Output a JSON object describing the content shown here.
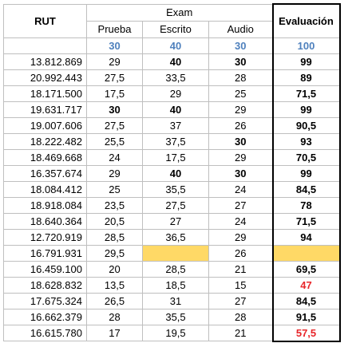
{
  "header": {
    "rut": "RUT",
    "exam": "Exam",
    "evaluacion": "Evaluación",
    "prueba": "Prueba",
    "escrito": "Escrito",
    "audio": "Audio"
  },
  "max_scores": {
    "prueba": "30",
    "escrito": "40",
    "audio": "30",
    "evaluacion": "100"
  },
  "rows": [
    {
      "rut": "13.812.869",
      "prueba": "29",
      "escrito": "40",
      "audio": "30",
      "eval": "99",
      "bold_p": false,
      "bold_e": true,
      "bold_a": true,
      "eval_red": false,
      "hl_e": false,
      "hl_eval": false
    },
    {
      "rut": "20.992.443",
      "prueba": "27,5",
      "escrito": "33,5",
      "audio": "28",
      "eval": "89",
      "bold_p": false,
      "bold_e": false,
      "bold_a": false,
      "eval_red": false,
      "hl_e": false,
      "hl_eval": false
    },
    {
      "rut": "18.171.500",
      "prueba": "17,5",
      "escrito": "29",
      "audio": "25",
      "eval": "71,5",
      "bold_p": false,
      "bold_e": false,
      "bold_a": false,
      "eval_red": false,
      "hl_e": false,
      "hl_eval": false
    },
    {
      "rut": "19.631.717",
      "prueba": "30",
      "escrito": "40",
      "audio": "29",
      "eval": "99",
      "bold_p": true,
      "bold_e": true,
      "bold_a": false,
      "eval_red": false,
      "hl_e": false,
      "hl_eval": false
    },
    {
      "rut": "19.007.606",
      "prueba": "27,5",
      "escrito": "37",
      "audio": "26",
      "eval": "90,5",
      "bold_p": false,
      "bold_e": false,
      "bold_a": false,
      "eval_red": false,
      "hl_e": false,
      "hl_eval": false
    },
    {
      "rut": "18.222.482",
      "prueba": "25,5",
      "escrito": "37,5",
      "audio": "30",
      "eval": "93",
      "bold_p": false,
      "bold_e": false,
      "bold_a": true,
      "eval_red": false,
      "hl_e": false,
      "hl_eval": false
    },
    {
      "rut": "18.469.668",
      "prueba": "24",
      "escrito": "17,5",
      "audio": "29",
      "eval": "70,5",
      "bold_p": false,
      "bold_e": false,
      "bold_a": false,
      "eval_red": false,
      "hl_e": false,
      "hl_eval": false
    },
    {
      "rut": "16.357.674",
      "prueba": "29",
      "escrito": "40",
      "audio": "30",
      "eval": "99",
      "bold_p": false,
      "bold_e": true,
      "bold_a": true,
      "eval_red": false,
      "hl_e": false,
      "hl_eval": false
    },
    {
      "rut": "18.084.412",
      "prueba": "25",
      "escrito": "35,5",
      "audio": "24",
      "eval": "84,5",
      "bold_p": false,
      "bold_e": false,
      "bold_a": false,
      "eval_red": false,
      "hl_e": false,
      "hl_eval": false
    },
    {
      "rut": "18.918.084",
      "prueba": "23,5",
      "escrito": "27,5",
      "audio": "27",
      "eval": "78",
      "bold_p": false,
      "bold_e": false,
      "bold_a": false,
      "eval_red": false,
      "hl_e": false,
      "hl_eval": false
    },
    {
      "rut": "18.640.364",
      "prueba": "20,5",
      "escrito": "27",
      "audio": "24",
      "eval": "71,5",
      "bold_p": false,
      "bold_e": false,
      "bold_a": false,
      "eval_red": false,
      "hl_e": false,
      "hl_eval": false
    },
    {
      "rut": "12.720.919",
      "prueba": "28,5",
      "escrito": "36,5",
      "audio": "29",
      "eval": "94",
      "bold_p": false,
      "bold_e": false,
      "bold_a": false,
      "eval_red": false,
      "hl_e": false,
      "hl_eval": false
    },
    {
      "rut": "16.791.931",
      "prueba": "29,5",
      "escrito": "",
      "audio": "26",
      "eval": "",
      "bold_p": false,
      "bold_e": false,
      "bold_a": false,
      "eval_red": false,
      "hl_e": true,
      "hl_eval": true
    },
    {
      "rut": "16.459.100",
      "prueba": "20",
      "escrito": "28,5",
      "audio": "21",
      "eval": "69,5",
      "bold_p": false,
      "bold_e": false,
      "bold_a": false,
      "eval_red": false,
      "hl_e": false,
      "hl_eval": false
    },
    {
      "rut": "18.628.832",
      "prueba": "13,5",
      "escrito": "18,5",
      "audio": "15",
      "eval": "47",
      "bold_p": false,
      "bold_e": false,
      "bold_a": false,
      "eval_red": true,
      "hl_e": false,
      "hl_eval": false
    },
    {
      "rut": "17.675.324",
      "prueba": "26,5",
      "escrito": "31",
      "audio": "27",
      "eval": "84,5",
      "bold_p": false,
      "bold_e": false,
      "bold_a": false,
      "eval_red": false,
      "hl_e": false,
      "hl_eval": false
    },
    {
      "rut": "16.662.379",
      "prueba": "28",
      "escrito": "35,5",
      "audio": "28",
      "eval": "91,5",
      "bold_p": false,
      "bold_e": false,
      "bold_a": false,
      "eval_red": false,
      "hl_e": false,
      "hl_eval": false
    },
    {
      "rut": "16.615.780",
      "prueba": "17",
      "escrito": "19,5",
      "audio": "21",
      "eval": "57,5",
      "bold_p": false,
      "bold_e": false,
      "bold_a": false,
      "eval_red": true,
      "hl_e": false,
      "hl_eval": false
    }
  ],
  "colors": {
    "max_score_text": "#4f81bd",
    "failing_text": "#e8262a",
    "missing_highlight": "#ffd966",
    "grid_line": "#bfbfbf"
  }
}
